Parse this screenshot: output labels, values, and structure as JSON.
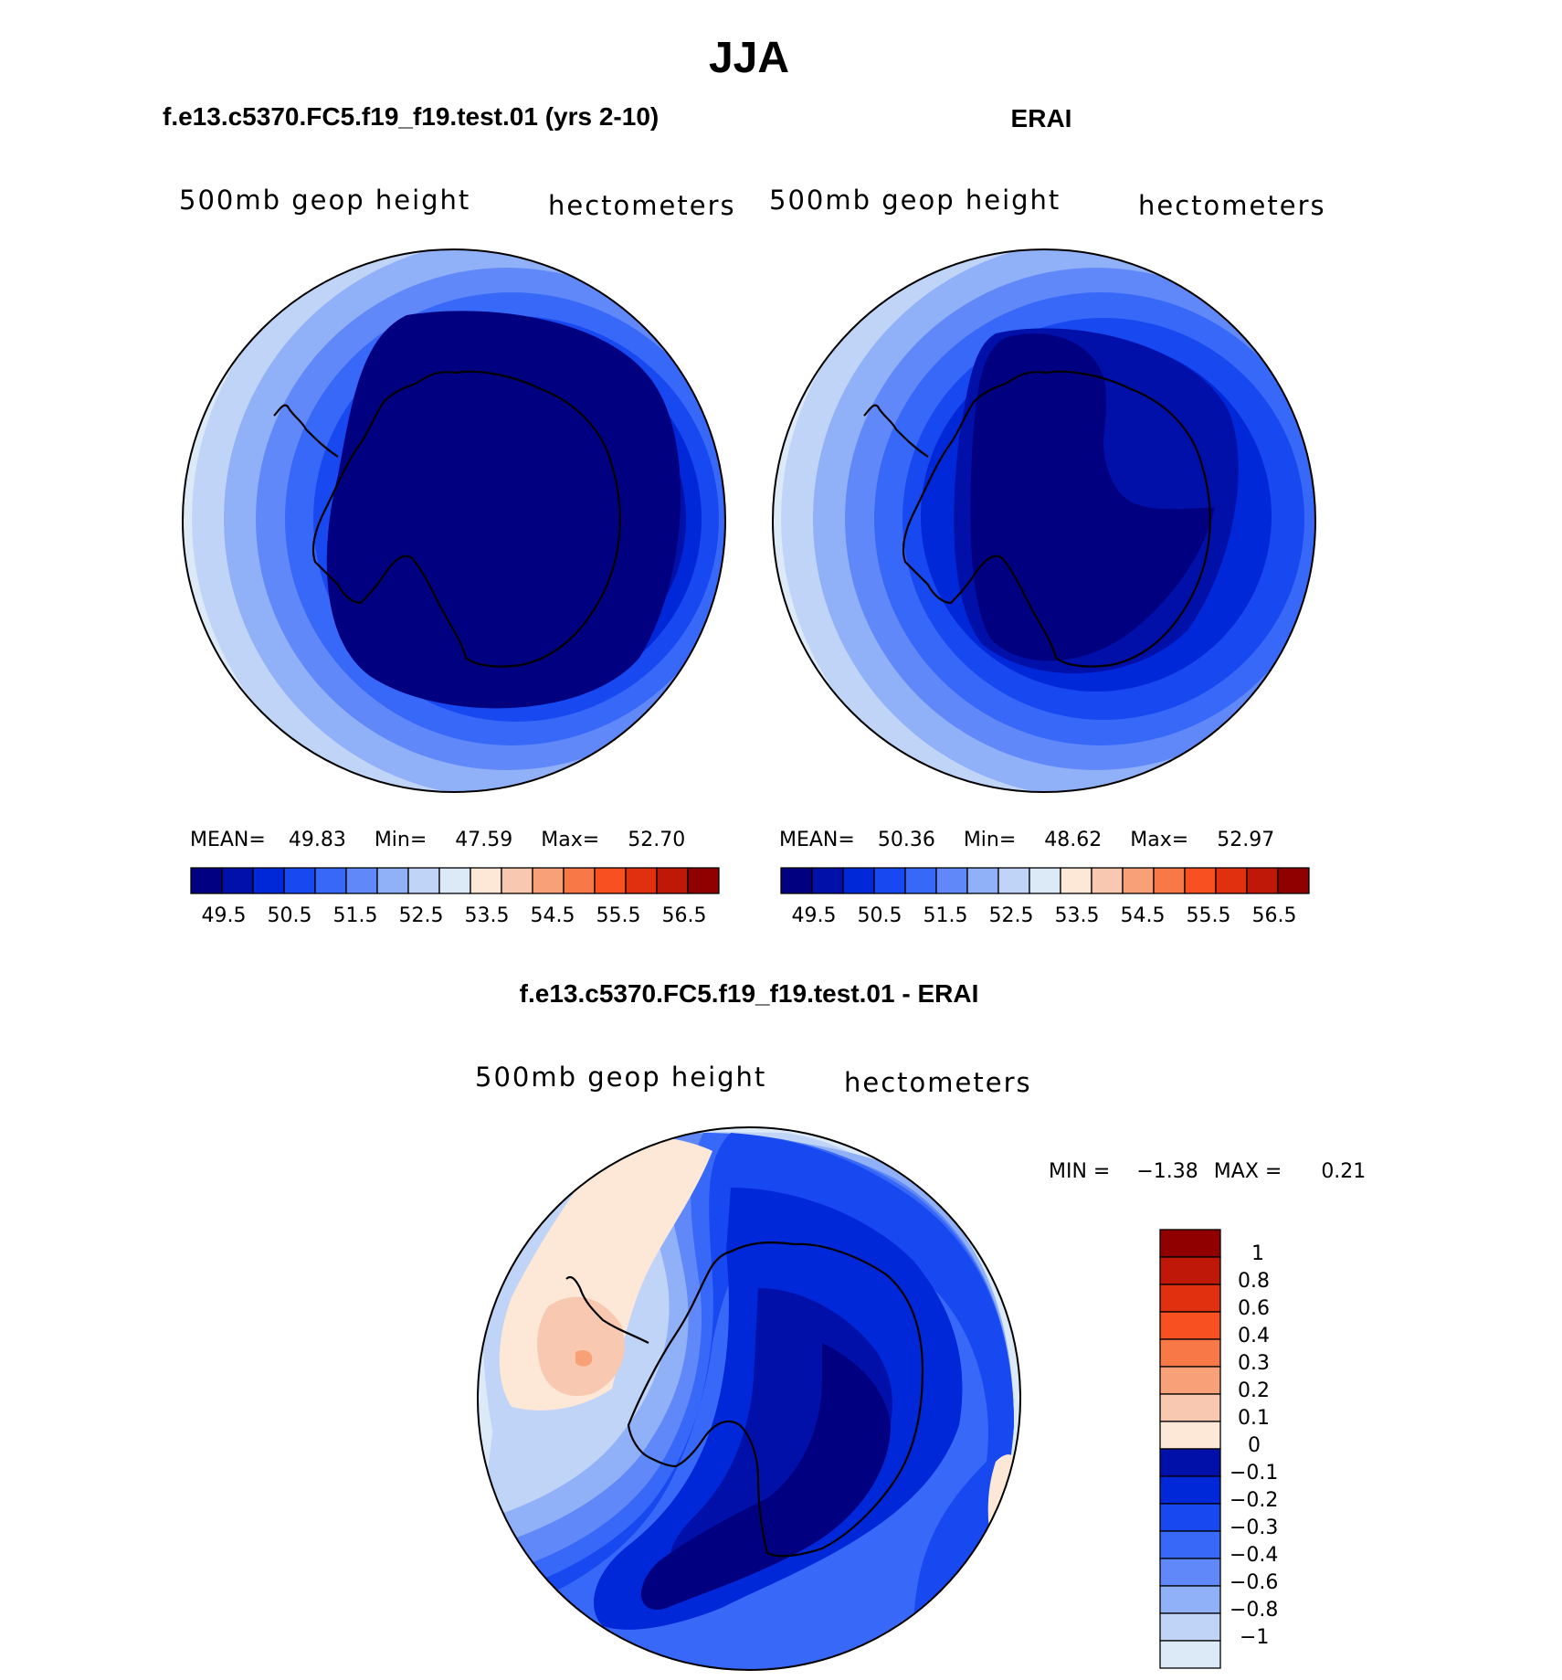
{
  "figure": {
    "season_title": "JJA",
    "colors": {
      "blues": [
        "#000080",
        "#0010a8",
        "#0028d8",
        "#1848f0",
        "#3868f8",
        "#6088f8",
        "#90b0f8",
        "#c0d4f8",
        "#dceaf8"
      ],
      "warms": [
        "#fde8d8",
        "#f8c8b0",
        "#f8a078",
        "#f87848",
        "#f85020",
        "#e03010",
        "#c01808",
        "#900000"
      ],
      "outline": "#000000"
    }
  },
  "panel_model": {
    "case_title": "f.e13.c5370.FC5.f19_f19.test.01 (yrs 2-10)",
    "variable_label": "500mb geop height",
    "units_label": "hectometers",
    "stats": {
      "mean_label": "MEAN=",
      "mean_value": "49.83",
      "min_label": "Min=",
      "min_value": "47.59",
      "max_label": "Max=",
      "max_value": "52.70"
    }
  },
  "panel_obs": {
    "case_title": "ERAI",
    "variable_label": "500mb geop height",
    "units_label": "hectometers",
    "stats": {
      "mean_label": "MEAN=",
      "mean_value": "50.36",
      "min_label": "Min=",
      "min_value": "48.62",
      "max_label": "Max=",
      "max_value": "52.97"
    }
  },
  "colorbar_levels": [
    "49.5",
    "50.5",
    "51.5",
    "52.5",
    "53.5",
    "54.5",
    "55.5",
    "56.5"
  ],
  "panel_diff": {
    "case_title": "f.e13.c5370.FC5.f19_f19.test.01 - ERAI",
    "variable_label": "500mb geop height",
    "units_label": "hectometers",
    "min_label": "MIN =",
    "min_value": "−1.38",
    "max_label": "MAX =",
    "max_value": "0.21",
    "levels": [
      "1",
      "0.8",
      "0.6",
      "0.4",
      "0.3",
      "0.2",
      "0.1",
      "0",
      "−0.1",
      "−0.2",
      "−0.3",
      "−0.4",
      "−0.6",
      "−0.8",
      "−1"
    ]
  }
}
